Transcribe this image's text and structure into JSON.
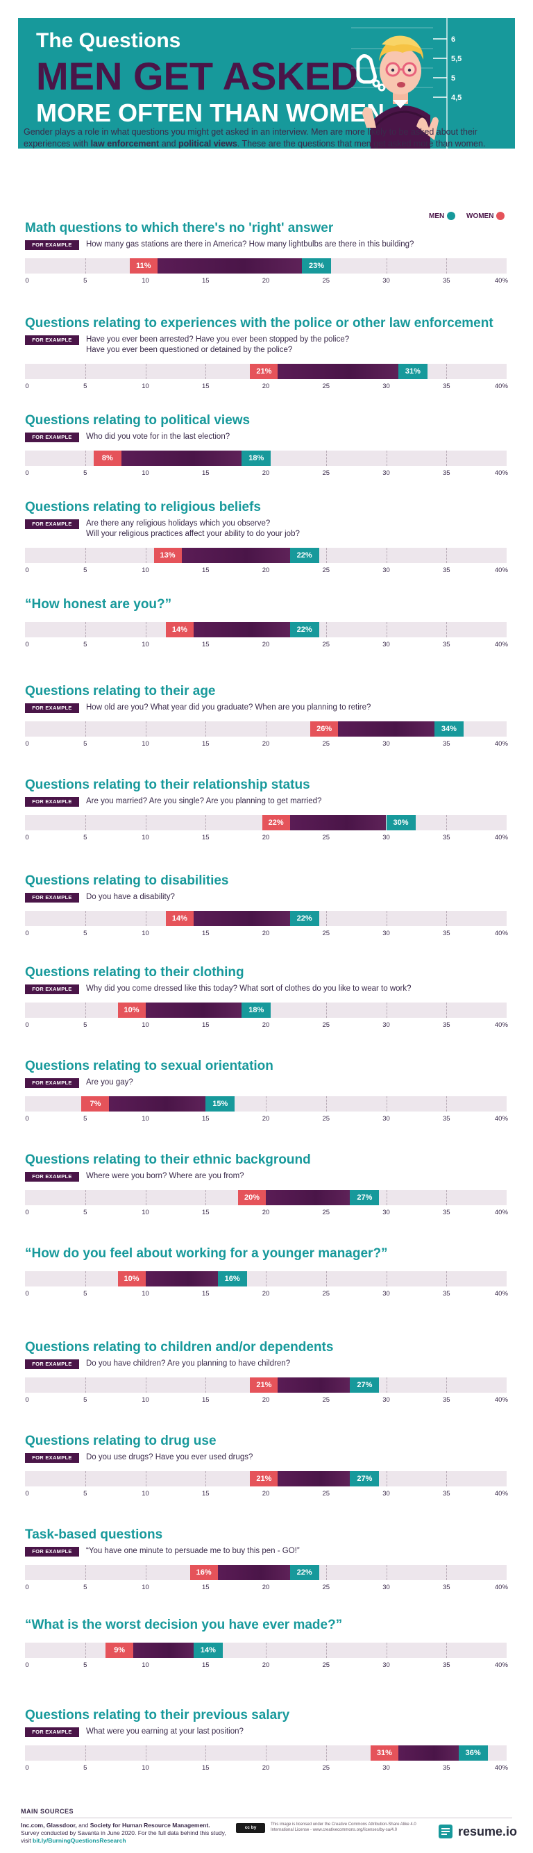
{
  "header": {
    "line1": "The Questions",
    "line2": "MEN GET ASKED",
    "line3": "MORE OFTEN THAN WOMEN",
    "height_chart_labels": [
      "6",
      "5,5",
      "5",
      "4,5"
    ]
  },
  "intro_parts": {
    "p1": "Gender plays a role in what questions you might get asked in an interview. Men are more likely to be asked about their experiences with ",
    "b1": "law enforcement",
    "p2": " and ",
    "b2": "political views",
    "p3": ". These are the questions that men get asked more than women."
  },
  "legend": {
    "men": "MEN",
    "women": "WOMEN"
  },
  "for_example_label": "FOR EXAMPLE",
  "colors": {
    "men": "#17999b",
    "women": "#e5535a",
    "range": "#4a1548",
    "track": "#ede6ec"
  },
  "chart_data": {
    "type": "bar",
    "subtype": "range-dumbbell",
    "series": [
      {
        "name": "MEN"
      },
      {
        "name": "WOMEN"
      }
    ],
    "xlim": [
      0,
      40
    ],
    "ticks": [
      "0",
      "5",
      "10",
      "15",
      "20",
      "25",
      "30",
      "35",
      "40%"
    ],
    "questions": [
      {
        "title": "Math questions to which there's no 'right' answer",
        "examples": [
          "How many gas stations are there in America? How many lightbulbs are there in this building?"
        ],
        "women": 11,
        "men": 23
      },
      {
        "title": "Questions relating to experiences with the police or other law enforcement",
        "examples": [
          "Have you ever been arrested? Have you ever been stopped by the police?",
          "Have you ever been questioned or detained by the police?"
        ],
        "women": 21,
        "men": 31
      },
      {
        "title": "Questions relating to political views",
        "examples": [
          "Who did you vote for in the last election?"
        ],
        "women": 8,
        "men": 18
      },
      {
        "title": "Questions relating to religious beliefs",
        "examples": [
          "Are there any religious holidays which you observe?",
          "Will your religious practices affect your ability to do your job?"
        ],
        "women": 13,
        "men": 22
      },
      {
        "title": "“How honest are you?”",
        "examples": [],
        "women": 14,
        "men": 22
      },
      {
        "title": "Questions relating to their age",
        "examples": [
          "How old are you? What year did you graduate? When are you planning to retire?"
        ],
        "women": 26,
        "men": 34
      },
      {
        "title": "Questions relating to their relationship status",
        "examples": [
          "Are you married? Are you single? Are you planning to get married?"
        ],
        "women": 22,
        "men": 30
      },
      {
        "title": "Questions relating to disabilities",
        "examples": [
          "Do you have a disability?"
        ],
        "women": 14,
        "men": 22
      },
      {
        "title": "Questions relating to their clothing",
        "examples": [
          "Why did you come dressed like this today? What sort of clothes do you like to wear to work?"
        ],
        "women": 10,
        "men": 18
      },
      {
        "title": "Questions relating to sexual orientation",
        "examples": [
          "Are you gay?"
        ],
        "women": 7,
        "men": 15
      },
      {
        "title": "Questions relating to their ethnic background",
        "examples": [
          "Where were you born? Where are you from?"
        ],
        "women": 20,
        "men": 27
      },
      {
        "title": "“How do you feel about working for a younger manager?”",
        "examples": [],
        "women": 10,
        "men": 16
      },
      {
        "title": "Questions relating to children and/or dependents",
        "examples": [
          "Do you have children? Are you planning to have children?"
        ],
        "women": 21,
        "men": 27
      },
      {
        "title": "Questions relating to drug use",
        "examples": [
          "Do you use drugs? Have you ever used drugs?"
        ],
        "women": 21,
        "men": 27
      },
      {
        "title": "Task-based questions",
        "examples": [
          "“You have one minute to persuade me to buy this pen - GO!”"
        ],
        "women": 16,
        "men": 22
      },
      {
        "title": "“What is the worst decision you have ever made?”",
        "examples": [],
        "women": 9,
        "men": 14
      },
      {
        "title": "Questions relating to their previous salary",
        "examples": [
          "What were you earning at your last position?"
        ],
        "women": 31,
        "men": 36
      }
    ]
  },
  "footer": {
    "heading": "MAIN SOURCES",
    "sources_bold": "Inc.com, Glassdoor, ",
    "sources_and": "and ",
    "sources_bold2": "Society for Human Resource Management.",
    "survey": "Survey conducted by Savanta in June 2020. For the full data behind this study, visit ",
    "link": "bit.ly/BurningQuestionsResearch",
    "license_badge": "cc by",
    "license_text": "This image is licensed under the Creative Commons Attribution-Share Alike 4.0 International License - www.creativecommons.org/licenses/by-sa/4.0",
    "brand": "resume.io"
  }
}
